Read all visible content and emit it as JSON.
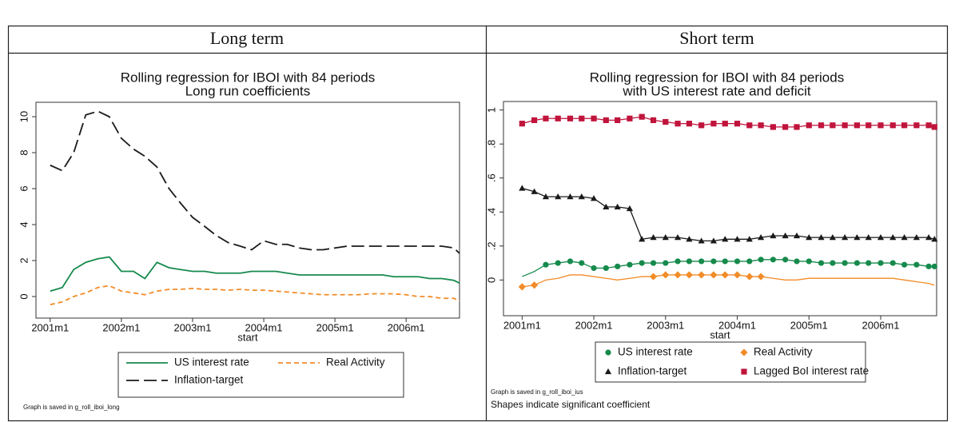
{
  "table": {
    "headers": [
      "Long term",
      "Short term"
    ]
  },
  "chart_data": [
    {
      "type": "line",
      "title": "Rolling regression for IBOI with 84  periods",
      "subtitle": "Long run coefficients",
      "x_label": "start",
      "x": [
        2001,
        2001.17,
        2001.33,
        2001.5,
        2001.67,
        2001.83,
        2002,
        2002.17,
        2002.33,
        2002.5,
        2002.67,
        2002.83,
        2003,
        2003.17,
        2003.33,
        2003.5,
        2003.67,
        2003.83,
        2004,
        2004.17,
        2004.33,
        2004.5,
        2004.67,
        2004.83,
        2005,
        2005.17,
        2005.33,
        2005.5,
        2005.67,
        2005.83,
        2006,
        2006.17,
        2006.33,
        2006.5,
        2006.67,
        2006.75
      ],
      "xlim": [
        2000.8,
        2006.75
      ],
      "xticks": [
        {
          "value": 2001,
          "label": "2001m1"
        },
        {
          "value": 2002,
          "label": "2002m1"
        },
        {
          "value": 2003,
          "label": "2003m1"
        },
        {
          "value": 2004,
          "label": "2004m1"
        },
        {
          "value": 2005,
          "label": "2005m1"
        },
        {
          "value": 2006,
          "label": "2006m1"
        }
      ],
      "ylim": [
        -1.2,
        10.8
      ],
      "yticks": [
        0,
        2,
        4,
        6,
        8,
        10
      ],
      "grid": false,
      "series": [
        {
          "name": "US interest rate",
          "color": "#168a4c",
          "dash": "solid",
          "values": [
            0.3,
            0.5,
            1.5,
            1.9,
            2.1,
            2.2,
            1.4,
            1.4,
            1.0,
            1.9,
            1.6,
            1.5,
            1.4,
            1.4,
            1.3,
            1.3,
            1.3,
            1.4,
            1.4,
            1.4,
            1.3,
            1.2,
            1.2,
            1.2,
            1.2,
            1.2,
            1.2,
            1.2,
            1.2,
            1.1,
            1.1,
            1.1,
            1.0,
            1.0,
            0.9,
            0.75
          ]
        },
        {
          "name": "Real Activity",
          "color": "#f28c28",
          "dash": "short",
          "values": [
            -0.45,
            -0.3,
            0.0,
            0.2,
            0.5,
            0.6,
            0.3,
            0.2,
            0.1,
            0.3,
            0.4,
            0.4,
            0.45,
            0.4,
            0.4,
            0.35,
            0.4,
            0.35,
            0.35,
            0.3,
            0.25,
            0.2,
            0.15,
            0.1,
            0.1,
            0.1,
            0.1,
            0.15,
            0.15,
            0.15,
            0.1,
            0.0,
            0.0,
            -0.1,
            -0.1,
            -0.25
          ]
        },
        {
          "name": "Inflation-target",
          "color": "#1a1a1a",
          "dash": "long",
          "values": [
            7.3,
            7.0,
            8.0,
            10.1,
            10.3,
            10.0,
            8.8,
            8.2,
            7.8,
            7.2,
            6.0,
            5.2,
            4.4,
            3.9,
            3.4,
            3.0,
            2.8,
            2.6,
            3.1,
            2.9,
            2.9,
            2.7,
            2.6,
            2.6,
            2.7,
            2.8,
            2.8,
            2.8,
            2.8,
            2.8,
            2.8,
            2.8,
            2.8,
            2.8,
            2.7,
            2.4
          ]
        }
      ],
      "notes": [
        "Graph is saved in g_roll_iboi_long"
      ]
    },
    {
      "type": "line",
      "title": "Rolling regression for IBOI with 84  periods",
      "subtitle": "with US interest rate and deficit",
      "x_label": "start",
      "x": [
        2001,
        2001.17,
        2001.33,
        2001.5,
        2001.67,
        2001.83,
        2002,
        2002.17,
        2002.33,
        2002.5,
        2002.67,
        2002.83,
        2003,
        2003.17,
        2003.33,
        2003.5,
        2003.67,
        2003.83,
        2004,
        2004.17,
        2004.33,
        2004.5,
        2004.67,
        2004.83,
        2005,
        2005.17,
        2005.33,
        2005.5,
        2005.67,
        2005.83,
        2006,
        2006.17,
        2006.33,
        2006.5,
        2006.67,
        2006.75
      ],
      "xlim": [
        2000.74,
        2006.78
      ],
      "xticks": [
        {
          "value": 2001,
          "label": "2001m1"
        },
        {
          "value": 2002,
          "label": "2002m1"
        },
        {
          "value": 2003,
          "label": "2003m1"
        },
        {
          "value": 2004,
          "label": "2004m1"
        },
        {
          "value": 2005,
          "label": "2005m1"
        },
        {
          "value": 2006,
          "label": "2006m1"
        }
      ],
      "ylim": [
        -0.21,
        1.05
      ],
      "yticks": [
        0,
        {
          "value": 0.2,
          "label": ".2"
        },
        {
          "value": 0.4,
          "label": ".4"
        },
        {
          "value": 0.6,
          "label": ".6"
        },
        {
          "value": 0.8,
          "label": ".8"
        },
        1
      ],
      "grid": false,
      "series": [
        {
          "name": "US interest rate",
          "color": "#168a4c",
          "marker": "circle",
          "values": [
            0.02,
            0.05,
            0.09,
            0.1,
            0.11,
            0.1,
            0.07,
            0.07,
            0.08,
            0.09,
            0.1,
            0.1,
            0.1,
            0.11,
            0.11,
            0.11,
            0.11,
            0.11,
            0.11,
            0.11,
            0.12,
            0.12,
            0.12,
            0.11,
            0.11,
            0.1,
            0.1,
            0.1,
            0.1,
            0.1,
            0.1,
            0.1,
            0.09,
            0.09,
            0.08,
            0.08
          ],
          "significant": [
            false,
            false,
            true,
            true,
            true,
            true,
            true,
            true,
            true,
            true,
            true,
            true,
            true,
            true,
            true,
            true,
            true,
            true,
            true,
            true,
            true,
            true,
            true,
            true,
            true,
            true,
            true,
            true,
            true,
            true,
            true,
            true,
            true,
            true,
            true,
            true
          ]
        },
        {
          "name": "Real Activity",
          "color": "#f28c28",
          "marker": "diamond",
          "values": [
            -0.04,
            -0.03,
            0.0,
            0.01,
            0.03,
            0.03,
            0.02,
            0.01,
            0.0,
            0.01,
            0.02,
            0.02,
            0.03,
            0.03,
            0.03,
            0.03,
            0.03,
            0.03,
            0.03,
            0.02,
            0.02,
            0.01,
            0.0,
            0.0,
            0.01,
            0.01,
            0.01,
            0.01,
            0.01,
            0.01,
            0.01,
            0.01,
            0.0,
            -0.01,
            -0.02,
            -0.03
          ],
          "significant": [
            true,
            true,
            false,
            false,
            false,
            false,
            false,
            false,
            false,
            false,
            false,
            true,
            true,
            true,
            true,
            true,
            true,
            true,
            true,
            true,
            true,
            false,
            false,
            false,
            false,
            false,
            false,
            false,
            false,
            false,
            false,
            false,
            false,
            false,
            false,
            false
          ]
        },
        {
          "name": "Inflation-target",
          "color": "#1a1a1a",
          "marker": "triangle",
          "values": [
            0.54,
            0.52,
            0.49,
            0.49,
            0.49,
            0.49,
            0.48,
            0.43,
            0.43,
            0.42,
            0.24,
            0.25,
            0.25,
            0.25,
            0.24,
            0.23,
            0.23,
            0.24,
            0.24,
            0.24,
            0.25,
            0.26,
            0.26,
            0.26,
            0.25,
            0.25,
            0.25,
            0.25,
            0.25,
            0.25,
            0.25,
            0.25,
            0.25,
            0.25,
            0.25,
            0.24
          ],
          "significant": [
            true,
            true,
            true,
            true,
            true,
            true,
            true,
            true,
            true,
            true,
            true,
            true,
            true,
            true,
            true,
            true,
            true,
            true,
            true,
            true,
            true,
            true,
            true,
            true,
            true,
            true,
            true,
            true,
            true,
            true,
            true,
            true,
            true,
            true,
            true,
            true
          ]
        },
        {
          "name": "Lagged BoI interest rate",
          "color": "#c0143c",
          "marker": "square",
          "values": [
            0.92,
            0.94,
            0.95,
            0.95,
            0.95,
            0.95,
            0.95,
            0.94,
            0.94,
            0.95,
            0.96,
            0.94,
            0.93,
            0.92,
            0.92,
            0.91,
            0.92,
            0.92,
            0.92,
            0.91,
            0.91,
            0.9,
            0.9,
            0.9,
            0.91,
            0.91,
            0.91,
            0.91,
            0.91,
            0.91,
            0.91,
            0.91,
            0.91,
            0.91,
            0.91,
            0.9
          ],
          "significant": [
            true,
            true,
            true,
            true,
            true,
            true,
            true,
            true,
            true,
            true,
            true,
            true,
            true,
            true,
            true,
            true,
            true,
            true,
            true,
            true,
            true,
            true,
            true,
            true,
            true,
            true,
            true,
            true,
            true,
            true,
            true,
            true,
            true,
            true,
            true,
            true
          ]
        }
      ],
      "notes": [
        "Graph is saved in g_roll_iboi_ius",
        "Shapes indicate significant coefficient"
      ]
    }
  ]
}
